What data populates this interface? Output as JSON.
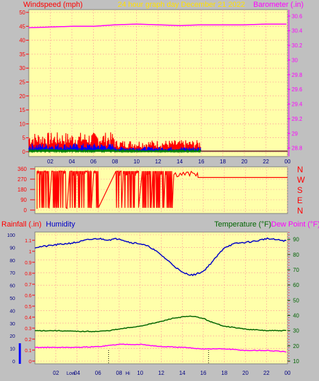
{
  "header": {
    "left_label": "Windspeed (mph)",
    "center_label": "24 hour graph day   December 21 2022",
    "right_label": "Barometer (.in)"
  },
  "colors": {
    "plot_bg": "#ffffaa",
    "frame_bg": "#c0c0c0",
    "grid": "#ff9999",
    "wind": "#ff0000",
    "gust": "#0000ff",
    "avg_wind": "#008000",
    "barometer": "#ff00ff",
    "humidity": "#0000c8",
    "temperature": "#006400",
    "dew_point": "#ff00ff",
    "header_yellow": "#ffe000"
  },
  "chart_data": [
    {
      "type": "line",
      "panel": "wind-barometer",
      "x_ticks": [
        "02",
        "04",
        "06",
        "08",
        "10",
        "12",
        "14",
        "16",
        "18",
        "20",
        "22",
        "00"
      ],
      "y_left_label": "Windspeed (mph)",
      "y_left_ticks": [
        0,
        5,
        10,
        15,
        20,
        25,
        30,
        35,
        40,
        45,
        50
      ],
      "y_left_range": [
        0,
        50
      ],
      "y_right_label": "Barometer (.in)",
      "y_right_ticks": [
        "28.8",
        "29",
        "29.2",
        "29.4",
        "29.6",
        "29.8",
        "30",
        "30.2",
        "30.4",
        "30.6"
      ],
      "y_right_range": [
        28.75,
        30.65
      ],
      "series": [
        {
          "name": "Barometer (.in)",
          "axis": "right",
          "x": [
            0,
            2,
            4,
            6,
            8,
            10,
            12,
            14,
            16,
            18,
            20,
            22,
            24
          ],
          "y": [
            30.44,
            30.45,
            30.46,
            30.46,
            30.48,
            30.49,
            30.48,
            30.47,
            30.48,
            30.48,
            30.48,
            30.49,
            30.49
          ]
        }
      ],
      "wind_activity_end_hour": 16,
      "wind_levels": {
        "peak": 7,
        "gust_band": 3,
        "avg_band": 1
      }
    },
    {
      "type": "line",
      "panel": "wind-direction",
      "y_ticks": [
        0,
        90,
        180,
        270,
        360
      ],
      "y_range": [
        0,
        360
      ],
      "direction_letters": [
        "N",
        "W",
        "S",
        "E",
        "N"
      ],
      "after_hour": 15.5,
      "after_value": 285
    },
    {
      "type": "line",
      "panel": "temp-humidity",
      "x_ticks": [
        "02",
        "04",
        "06",
        "08",
        "10",
        "12",
        "14",
        "16",
        "18",
        "20",
        "22",
        "00"
      ],
      "bottom_labels": [
        "Low",
        "Hi"
      ],
      "left_label_1": "Rainfall (.in)",
      "left_label_2": "Humidity",
      "right_label_1": "Temperature (°F)",
      "right_label_2": "Dew Point (°F)",
      "humidity_ticks": [
        0,
        10,
        20,
        30,
        40,
        50,
        60,
        70,
        80,
        90,
        100
      ],
      "rain_ticks": [
        "0",
        "0.1",
        "0.2",
        "0.3",
        "0.4",
        "0.5",
        "0.6",
        "0.7",
        "0.8",
        "0.9",
        "1",
        "1.1"
      ],
      "temp_ticks": [
        10,
        20,
        30,
        40,
        50,
        60,
        70,
        80,
        90
      ],
      "temp_range": [
        10,
        93
      ],
      "series": [
        {
          "name": "Humidity",
          "x": [
            0,
            1,
            2,
            3,
            4,
            5,
            6,
            7,
            8,
            9,
            10,
            11,
            12,
            13,
            14,
            15,
            16,
            17,
            18,
            19,
            20,
            21,
            22,
            23,
            24
          ],
          "y": [
            90,
            91,
            92,
            93,
            94,
            96,
            97,
            96,
            97,
            94,
            93,
            90,
            84,
            77,
            70,
            68,
            71,
            80,
            90,
            93,
            94,
            95,
            97,
            96,
            95
          ]
        },
        {
          "name": "Temperature (°F)",
          "x": [
            0,
            2,
            4,
            6,
            7,
            8,
            10,
            12,
            13,
            14,
            15,
            16,
            17,
            18,
            20,
            22,
            24
          ],
          "y": [
            30,
            30,
            29.5,
            29.5,
            30,
            31,
            33,
            36,
            38,
            39,
            39.5,
            38,
            35,
            33,
            31,
            30,
            30
          ]
        },
        {
          "name": "Dew Point (°F)",
          "x": [
            0,
            2,
            4,
            6,
            8,
            10,
            12,
            14,
            16,
            18,
            20,
            22,
            24
          ],
          "y": [
            19,
            19,
            19,
            19.5,
            21,
            21,
            19.5,
            19,
            18,
            18,
            17,
            17,
            16
          ]
        }
      ],
      "markers_hours": [
        7,
        16.5
      ]
    }
  ]
}
